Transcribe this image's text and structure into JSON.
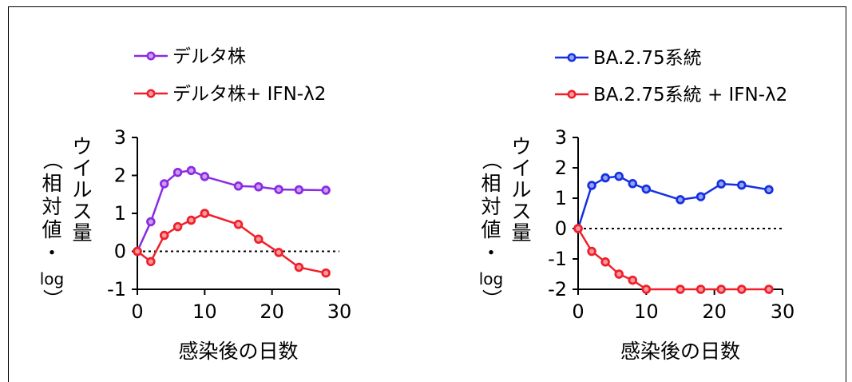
{
  "chart_data": [
    {
      "type": "line",
      "title": "",
      "xlabel": "感染後の日数",
      "ylabel": "ウイルス量（相対値・log）",
      "xlim": [
        0,
        30
      ],
      "ylim": [
        -1,
        3
      ],
      "xticks": [
        "0",
        "10",
        "20",
        "30"
      ],
      "yticks": [
        "-1",
        "0",
        "1",
        "2",
        "3"
      ],
      "reference_line": {
        "y": 0,
        "style": "dotted"
      },
      "legend_position": "top-left",
      "series": [
        {
          "name": "デルタ株",
          "color": "#8B2BE2",
          "x": [
            0,
            2,
            4,
            6,
            8,
            10,
            15,
            18,
            21,
            24,
            28
          ],
          "y": [
            0,
            0.78,
            1.78,
            2.08,
            2.13,
            1.97,
            1.72,
            1.7,
            1.63,
            1.62,
            1.61
          ]
        },
        {
          "name": "デルタ株+ IFN-λ2",
          "color": "#F0202A",
          "x": [
            0,
            2,
            4,
            6,
            8,
            10,
            15,
            18,
            21,
            24,
            28
          ],
          "y": [
            0,
            -0.27,
            0.42,
            0.65,
            0.82,
            1.0,
            0.71,
            0.32,
            -0.03,
            -0.42,
            -0.57
          ]
        }
      ]
    },
    {
      "type": "line",
      "title": "",
      "xlabel": "感染後の日数",
      "ylabel": "ウイルス量（相対値・log）",
      "xlim": [
        0,
        30
      ],
      "ylim": [
        -2,
        3
      ],
      "xticks": [
        "0",
        "10",
        "20",
        "30"
      ],
      "yticks": [
        "-2",
        "-1",
        "0",
        "1",
        "2",
        "3"
      ],
      "reference_line": {
        "y": 0,
        "style": "dotted"
      },
      "legend_position": "top-right",
      "series": [
        {
          "name": "BA.2.75系統",
          "color": "#1431E0",
          "x": [
            0,
            2,
            4,
            6,
            8,
            10,
            15,
            18,
            21,
            24,
            28
          ],
          "y": [
            0,
            1.42,
            1.67,
            1.72,
            1.48,
            1.3,
            0.95,
            1.05,
            1.47,
            1.43,
            1.28
          ]
        },
        {
          "name": "BA.2.75系統 + IFN-λ2",
          "color": "#F0202A",
          "x": [
            0,
            2,
            4,
            6,
            8,
            10,
            15,
            18,
            21,
            24,
            28
          ],
          "y": [
            0,
            -0.75,
            -1.1,
            -1.5,
            -1.7,
            -2.0,
            -2.0,
            -2.0,
            -2.0,
            -2.0,
            -2.0
          ]
        }
      ]
    }
  ]
}
